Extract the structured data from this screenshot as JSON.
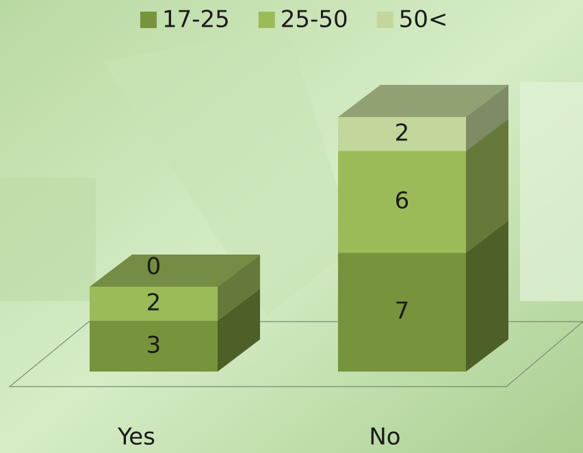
{
  "chart_data": {
    "type": "bar3d-stacked",
    "categories": [
      "Yes",
      "No"
    ],
    "series": [
      {
        "name": "17-25",
        "color": "#77933c",
        "values": [
          3,
          7
        ]
      },
      {
        "name": "25-50",
        "color": "#9bbb59",
        "values": [
          2,
          6
        ]
      },
      {
        "name": "50<",
        "color": "#c3d69b",
        "values": [
          0,
          2
        ]
      }
    ],
    "legend": "top"
  }
}
